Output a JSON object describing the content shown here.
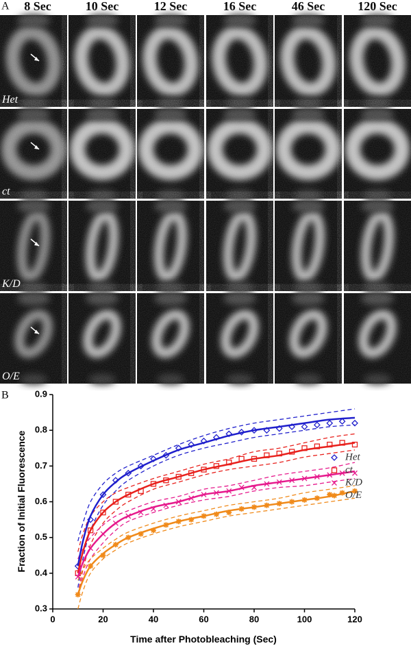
{
  "panel_a": {
    "label": "A",
    "columns": [
      "8 Sec",
      "10 Sec",
      "12 Sec",
      "16 Sec",
      "46 Sec",
      "120 Sec"
    ],
    "rows": [
      "Het",
      "ct",
      "K/D",
      "O/E"
    ]
  },
  "panel_b_label": "B",
  "chart_data": {
    "type": "scatter",
    "xlabel": "Time after Photobleaching (Sec)",
    "ylabel": "Fraction of Initial Fluorescence",
    "xlim": [
      0,
      120
    ],
    "xticks": [
      0,
      20,
      40,
      60,
      80,
      100,
      120
    ],
    "ylim": [
      0.3,
      0.9
    ],
    "yticks": [
      0.3,
      0.4,
      0.5,
      0.6,
      0.7,
      0.8,
      0.9
    ],
    "legend": "lower right",
    "x": [
      10,
      15,
      20,
      25,
      30,
      35,
      40,
      45,
      50,
      55,
      60,
      65,
      70,
      75,
      80,
      85,
      90,
      95,
      100,
      105,
      110,
      115,
      120
    ],
    "fit_x": [
      10,
      12,
      15,
      20,
      25,
      30,
      40,
      50,
      60,
      70,
      80,
      90,
      100,
      110,
      120
    ],
    "series": [
      {
        "name": "Het",
        "color": "#1f1fcc",
        "marker": "diamond",
        "values": [
          0.42,
          0.55,
          0.62,
          0.66,
          0.68,
          0.7,
          0.72,
          0.73,
          0.75,
          0.76,
          0.77,
          0.78,
          0.79,
          0.795,
          0.8,
          0.8,
          0.805,
          0.81,
          0.81,
          0.815,
          0.82,
          0.825,
          0.82
        ],
        "fit": [
          0.42,
          0.49,
          0.56,
          0.62,
          0.655,
          0.68,
          0.715,
          0.745,
          0.765,
          0.785,
          0.8,
          0.81,
          0.82,
          0.83,
          0.835
        ],
        "fit_upper": [
          0.49,
          0.54,
          0.6,
          0.65,
          0.68,
          0.7,
          0.73,
          0.76,
          0.785,
          0.805,
          0.82,
          0.83,
          0.84,
          0.85,
          0.86
        ],
        "fit_lower": [
          0.36,
          0.44,
          0.52,
          0.59,
          0.63,
          0.66,
          0.7,
          0.73,
          0.75,
          0.765,
          0.78,
          0.79,
          0.8,
          0.81,
          0.815
        ]
      },
      {
        "name": "ct",
        "color": "#e8201c",
        "marker": "square",
        "values": [
          0.4,
          0.52,
          0.57,
          0.6,
          0.62,
          0.63,
          0.65,
          0.66,
          0.67,
          0.68,
          0.69,
          0.7,
          0.71,
          0.72,
          0.72,
          0.73,
          0.735,
          0.74,
          0.75,
          0.755,
          0.76,
          0.765,
          0.76
        ],
        "fit": [
          0.4,
          0.46,
          0.52,
          0.57,
          0.6,
          0.62,
          0.65,
          0.67,
          0.69,
          0.705,
          0.72,
          0.73,
          0.745,
          0.755,
          0.765
        ],
        "fit_upper": [
          0.46,
          0.51,
          0.56,
          0.6,
          0.625,
          0.64,
          0.665,
          0.685,
          0.705,
          0.72,
          0.74,
          0.75,
          0.765,
          0.78,
          0.79
        ],
        "fit_lower": [
          0.34,
          0.41,
          0.48,
          0.54,
          0.575,
          0.6,
          0.635,
          0.655,
          0.675,
          0.69,
          0.7,
          0.71,
          0.725,
          0.735,
          0.745
        ]
      },
      {
        "name": "K/D",
        "color": "#e6198c",
        "marker": "x",
        "values": [
          0.39,
          0.47,
          0.51,
          0.54,
          0.56,
          0.57,
          0.58,
          0.59,
          0.6,
          0.61,
          0.62,
          0.625,
          0.63,
          0.64,
          0.64,
          0.65,
          0.655,
          0.66,
          0.665,
          0.67,
          0.675,
          0.68,
          0.68
        ],
        "fit": [
          0.39,
          0.43,
          0.47,
          0.51,
          0.54,
          0.56,
          0.585,
          0.6,
          0.62,
          0.63,
          0.645,
          0.655,
          0.665,
          0.675,
          0.685
        ],
        "fit_upper": [
          0.44,
          0.47,
          0.5,
          0.535,
          0.56,
          0.575,
          0.6,
          0.615,
          0.635,
          0.645,
          0.66,
          0.675,
          0.685,
          0.695,
          0.71
        ],
        "fit_lower": [
          0.34,
          0.39,
          0.44,
          0.485,
          0.52,
          0.545,
          0.57,
          0.59,
          0.605,
          0.615,
          0.63,
          0.64,
          0.645,
          0.655,
          0.665
        ]
      },
      {
        "name": "O/E",
        "color": "#f08a1a",
        "marker": "asterisk",
        "values": [
          0.34,
          0.42,
          0.45,
          0.48,
          0.5,
          0.51,
          0.52,
          0.535,
          0.545,
          0.55,
          0.56,
          0.565,
          0.57,
          0.58,
          0.585,
          0.59,
          0.595,
          0.6,
          0.605,
          0.61,
          0.62,
          0.625,
          0.63
        ],
        "fit": [
          0.34,
          0.38,
          0.42,
          0.455,
          0.48,
          0.5,
          0.525,
          0.545,
          0.56,
          0.575,
          0.585,
          0.595,
          0.605,
          0.615,
          0.63
        ],
        "fit_upper": [
          0.38,
          0.41,
          0.44,
          0.47,
          0.495,
          0.515,
          0.54,
          0.56,
          0.575,
          0.59,
          0.6,
          0.61,
          0.625,
          0.635,
          0.645
        ],
        "fit_lower": [
          0.3,
          0.35,
          0.4,
          0.44,
          0.465,
          0.485,
          0.51,
          0.53,
          0.545,
          0.56,
          0.57,
          0.58,
          0.59,
          0.6,
          0.61
        ]
      }
    ]
  }
}
